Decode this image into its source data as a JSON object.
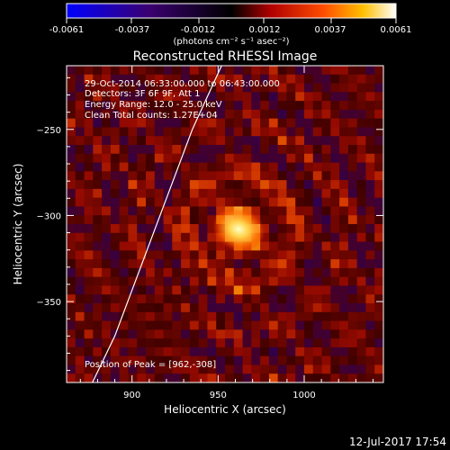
{
  "colorbar": {
    "tick_labels": [
      "-0.0061",
      "-0.0037",
      "-0.0012",
      "0.0012",
      "0.0037",
      "0.0061"
    ],
    "tick_values": [
      -0.0061,
      -0.0037,
      -0.0012,
      0.0012,
      0.0037,
      0.0061
    ],
    "range": [
      -0.0061,
      0.0061
    ],
    "units_label": "(photons cm⁻² s⁻¹ asec⁻²)",
    "colors": [
      "#0000ff",
      "#000000",
      "#ff0000",
      "#ffff00",
      "#ffffff"
    ]
  },
  "plot": {
    "title": "Reconstructed RHESSI Image",
    "info_lines": [
      "29-Oct-2014 06:33:00.000 to 06:43:00.000",
      "Detectors: 3F 6F 9F, Att 1",
      "Energy Range: 12.0 - 25.0 keV",
      "Clean     Total counts: 1.27E+04"
    ],
    "peak_label": "Position of Peak = [962,-308]",
    "footer_date": "12-Jul-2017 17:54"
  },
  "chart_data": {
    "type": "heatmap",
    "title": "Reconstructed RHESSI Image",
    "xlabel": "Heliocentric X (arcsec)",
    "ylabel": "Heliocentric Y (arcsec)",
    "xlim": [
      862,
      1046
    ],
    "ylim": [
      -397,
      -213
    ],
    "x_ticks": [
      900,
      950,
      1000
    ],
    "x_tick_labels": [
      "900",
      "950",
      "1000"
    ],
    "y_ticks": [
      -250,
      -300,
      -350
    ],
    "y_tick_labels": [
      "−250",
      "−300",
      "−350"
    ],
    "peak": {
      "x": 962,
      "y": -308
    },
    "limb_curve": [
      [
        877,
        -397
      ],
      [
        890,
        -370
      ],
      [
        905,
        -330
      ],
      [
        920,
        -290
      ],
      [
        935,
        -250
      ],
      [
        952,
        -213
      ]
    ],
    "grid": false
  }
}
